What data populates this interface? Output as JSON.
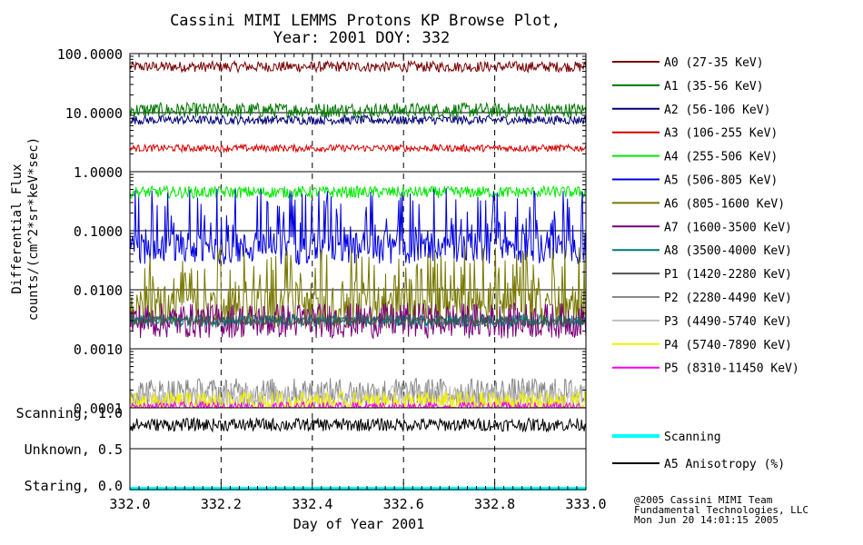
{
  "chart_data": {
    "type": "line",
    "title_line1": "Cassini MIMI LEMMS Protons KP Browse Plot,",
    "title_line2": "Year: 2001 DOY: 332",
    "ylabel_line1": "Differential Flux",
    "ylabel_line2": "counts/(cm^2*sr*keV*sec)",
    "xlabel": "Day of Year 2001",
    "xlim": [
      332.0,
      333.0
    ],
    "x_ticks": [
      "332.0",
      "332.2",
      "332.4",
      "332.6",
      "332.8",
      "333.0"
    ],
    "y_scale": "log",
    "ylim": [
      0.0001,
      100
    ],
    "y_ticks": [
      "100.0000",
      "10.0000",
      "1.0000",
      "0.1000",
      "0.0100",
      "0.0010",
      "0.0001"
    ],
    "grid": true,
    "legend_placement": "right",
    "series": [
      {
        "name": "A0 (27-35 KeV)",
        "color": "#7a0000",
        "level": 60,
        "noise": 0.18
      },
      {
        "name": "A1 (35-56 KeV)",
        "color": "#007800",
        "level": 11,
        "noise": 0.25
      },
      {
        "name": "A2 (56-106 KeV)",
        "color": "#000078",
        "level": 7.5,
        "noise": 0.15
      },
      {
        "name": "A3 (106-255 KeV)",
        "color": "#d80000",
        "level": 2.5,
        "noise": 0.12
      },
      {
        "name": "A4 (255-506 KeV)",
        "color": "#00e800",
        "level": 0.45,
        "noise": 0.2
      },
      {
        "name": "A5 (506-805 KeV)",
        "color": "#0000e0",
        "level": 0.05,
        "noise": 0.9
      },
      {
        "name": "A6 (805-1600 KeV)",
        "color": "#787800",
        "level": 0.005,
        "noise": 1.2
      },
      {
        "name": "A7 (1600-3500 KeV)",
        "color": "#780078",
        "level": 0.003,
        "noise": 0.6
      },
      {
        "name": "A8 (3500-4000 KeV)",
        "color": "#007878",
        "level": 0.003,
        "noise": 0.2
      },
      {
        "name": "P1 (1420-2280 KeV)",
        "color": "#505050",
        "level": 0.003,
        "noise": 0.15
      },
      {
        "name": "P2 (2280-4490 KeV)",
        "color": "#888888",
        "level": 0.00018,
        "noise": 0.5
      },
      {
        "name": "P3 (4490-5740 KeV)",
        "color": "#c0c0c0",
        "level": 0.00015,
        "noise": 0.4
      },
      {
        "name": "P4 (5740-7890 KeV)",
        "color": "#f0f000",
        "level": 0.00012,
        "noise": 0.4
      },
      {
        "name": "P5 (8310-11450 KeV)",
        "color": "#f000f0",
        "level": 0.0001,
        "noise": 0.2
      }
    ],
    "lower_panel": {
      "y_labels": [
        "Scanning, 1.0",
        "Unknown, 0.5",
        "Staring, 0.0"
      ],
      "series": [
        {
          "name": "Scanning",
          "color": "#00ffff",
          "level": 0.0
        },
        {
          "name": "A5 Anisotropy (%)",
          "color": "#000000",
          "level": 0.83
        }
      ]
    }
  },
  "credit": {
    "line1": "@2005 Cassini MIMI Team",
    "line2": "Fundamental Technologies, LLC",
    "line3": "Mon Jun 20 14:01:15 2005"
  }
}
